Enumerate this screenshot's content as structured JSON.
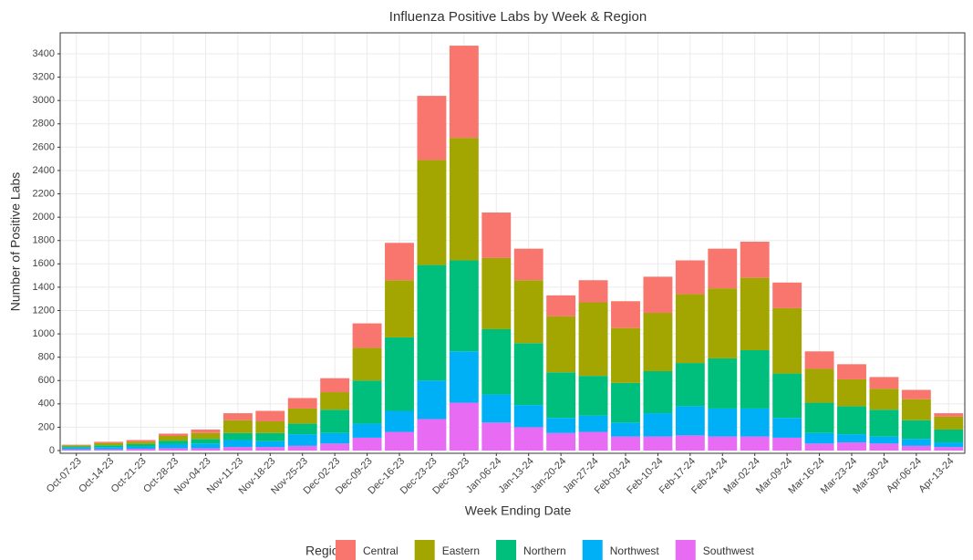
{
  "chart_data": {
    "type": "stacked_bar",
    "title": "Influenza Positive Labs by Week & Region",
    "x_label": "Week Ending Date",
    "y_label": "Number of Positive Labs",
    "legend_title": "Region",
    "categories": [
      "Oct-07-23",
      "Oct-14-23",
      "Oct-21-23",
      "Oct-28-23",
      "Nov-04-23",
      "Nov-11-23",
      "Nov-18-23",
      "Nov-25-23",
      "Dec-02-23",
      "Dec-09-23",
      "Dec-16-23",
      "Dec-23-23",
      "Dec-30-23",
      "Jan-06-24",
      "Jan-13-24",
      "Jan-20-24",
      "Jan-27-24",
      "Feb-03-24",
      "Feb-10-24",
      "Feb-17-24",
      "Feb-24-24",
      "Mar-02-24",
      "Mar-09-24",
      "Mar-16-24",
      "Mar-23-24",
      "Mar-30-24",
      "Apr-06-24",
      "Apr-13-24"
    ],
    "series": [
      {
        "name": "Central",
        "color": "#F8766D",
        "values": [
          5,
          10,
          15,
          20,
          30,
          60,
          90,
          90,
          120,
          210,
          320,
          550,
          790,
          390,
          270,
          180,
          190,
          230,
          310,
          290,
          340,
          310,
          220,
          150,
          130,
          100,
          80,
          30
        ]
      },
      {
        "name": "Eastern",
        "color": "#A3A500",
        "values": [
          10,
          20,
          20,
          40,
          50,
          110,
          100,
          130,
          150,
          280,
          490,
          900,
          1050,
          610,
          540,
          480,
          630,
          470,
          500,
          590,
          600,
          620,
          560,
          290,
          230,
          180,
          180,
          110
        ]
      },
      {
        "name": "Northern",
        "color": "#00BF7D",
        "values": [
          10,
          15,
          20,
          30,
          40,
          60,
          70,
          90,
          200,
          370,
          630,
          990,
          780,
          560,
          530,
          390,
          340,
          340,
          360,
          370,
          430,
          500,
          380,
          260,
          240,
          230,
          160,
          110
        ]
      },
      {
        "name": "Northwest",
        "color": "#00B0F6",
        "values": [
          15,
          20,
          20,
          35,
          40,
          60,
          50,
          100,
          90,
          120,
          180,
          330,
          440,
          240,
          190,
          130,
          140,
          120,
          200,
          250,
          240,
          240,
          170,
          90,
          70,
          60,
          60,
          40
        ]
      },
      {
        "name": "Southwest",
        "color": "#E76BF3",
        "values": [
          10,
          10,
          15,
          20,
          20,
          30,
          30,
          40,
          60,
          110,
          160,
          270,
          410,
          240,
          200,
          150,
          160,
          120,
          120,
          130,
          120,
          120,
          110,
          60,
          70,
          60,
          40,
          30
        ]
      }
    ],
    "ylim": [
      0,
      3580
    ],
    "yticks": [
      0,
      200,
      400,
      600,
      800,
      1000,
      1200,
      1400,
      1600,
      1800,
      2000,
      2200,
      2400,
      2600,
      2800,
      3000,
      3200,
      3400
    ],
    "grid": true
  }
}
